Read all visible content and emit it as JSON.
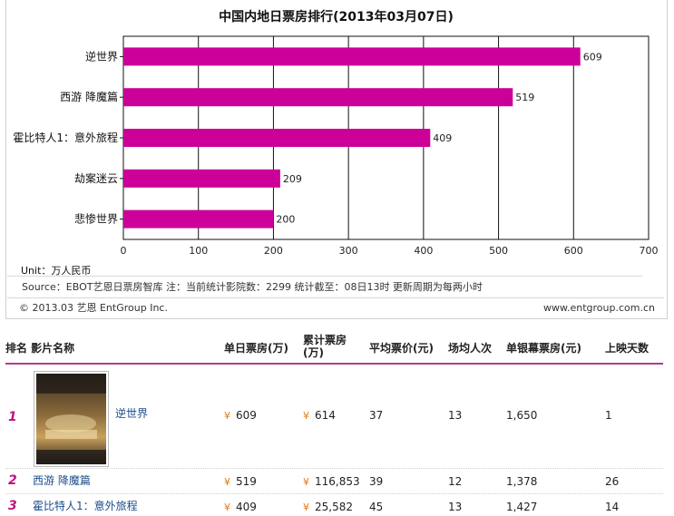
{
  "chart_data": {
    "type": "bar",
    "orientation": "horizontal",
    "title": "中国内地日票房排行(2013年03月07日)",
    "categories": [
      "逆世界",
      "西游 降魔篇",
      "霍比特人1：意外旅程",
      "劫案迷云",
      "悲惨世界"
    ],
    "values": [
      609,
      519,
      409,
      209,
      200
    ],
    "xlim": [
      0,
      700
    ],
    "xticks": [
      "0",
      "100",
      "200",
      "300",
      "400",
      "500",
      "600",
      "700"
    ],
    "grid": "vertical",
    "colors": {
      "bar": "#cc0099"
    }
  },
  "unit": "Unit：万人民币",
  "source": "Source：EBOT艺恩日票房智库   注：当前统计影院数：2299   统计截至：08日13时   更新周期为每两小时",
  "copyright": "© 2013.03 艺恩 EntGroup Inc.",
  "website": "www.entgroup.com.cn",
  "table": {
    "headers": {
      "rank_title": "排名 影片名称",
      "daily": "单日票房(万)",
      "total_line1": "累计票房",
      "total_line2": "(万)",
      "avg_price": "平均票价(元)",
      "avg_people": "场均人次",
      "per_screen": "单银幕票房(元)",
      "days": "上映天数"
    },
    "currency_symbol": "¥",
    "rows": [
      {
        "rank": "1",
        "title": "逆世界",
        "daily": "609",
        "total": "614",
        "avg_price": "37",
        "avg_people": "13",
        "per_screen": "1,650",
        "days": "1"
      },
      {
        "rank": "2",
        "title": "西游 降魔篇",
        "daily": "519",
        "total": "116,853",
        "avg_price": "39",
        "avg_people": "12",
        "per_screen": "1,378",
        "days": "26"
      },
      {
        "rank": "3",
        "title": "霍比特人1：意外旅程",
        "daily": "409",
        "total": "25,582",
        "avg_price": "45",
        "avg_people": "13",
        "per_screen": "1,427",
        "days": "14"
      }
    ]
  }
}
